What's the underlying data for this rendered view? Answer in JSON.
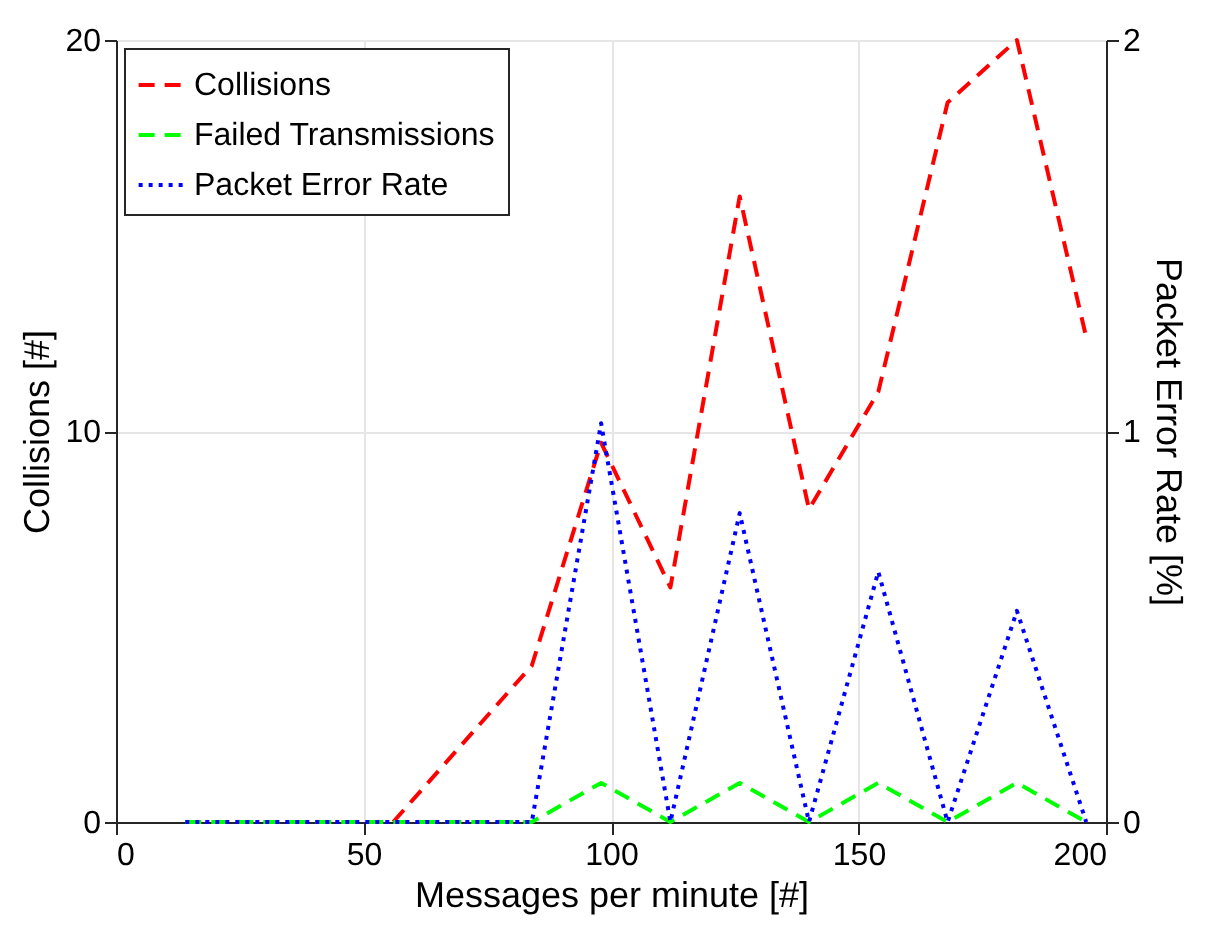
{
  "chart_data": {
    "type": "line",
    "xlabel": "Messages per minute [#]",
    "ylabel": "Collisions [#]",
    "y2label": "Packet Error Rate [%]",
    "x": [
      14,
      28,
      42,
      56,
      70,
      84,
      98,
      112,
      126,
      140,
      154,
      168,
      182,
      196
    ],
    "series": [
      {
        "name": "Collisions",
        "color": "#ff0000",
        "line_style": "dashed",
        "values": [
          null,
          null,
          null,
          0,
          2,
          4,
          9.7,
          6,
          16,
          8,
          11,
          18.4,
          20,
          12.4
        ]
      },
      {
        "name": "Failed Transmissions",
        "color": "#00ff00",
        "line_style": "dashed",
        "values": [
          0,
          0,
          0,
          0,
          0,
          0,
          1,
          0,
          1,
          0,
          1,
          0,
          1,
          0
        ]
      },
      {
        "name": "Packet Error Rate",
        "color": "#0000ff",
        "line_style": "dotted",
        "axis": "y2",
        "values": [
          0,
          0,
          0,
          0,
          0,
          0,
          1.02,
          0,
          0.79,
          0,
          0.64,
          0,
          0.54,
          0
        ]
      }
    ],
    "xlim": [
      0,
      200
    ],
    "xticks": [
      0,
      50,
      100,
      150,
      200
    ],
    "ylim": [
      0,
      20
    ],
    "yticks": [
      0,
      10,
      20
    ],
    "y2lim": [
      0,
      2
    ],
    "y2ticks": [
      0,
      1,
      2
    ],
    "grid": true,
    "legend": "top left",
    "marker": "none"
  }
}
